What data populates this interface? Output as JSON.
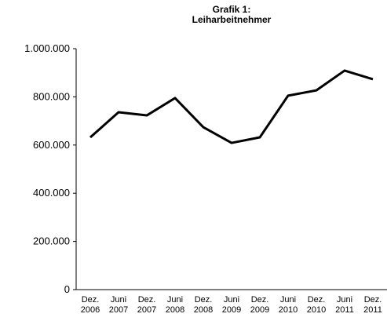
{
  "chart_data": {
    "type": "line",
    "title": "Grafik 1:\nLeiharbeitnehmer",
    "categories": [
      "Dez.\n2006",
      "Juni\n2007",
      "Dez.\n2007",
      "Juni\n2008",
      "Dez.\n2008",
      "Juni\n2009",
      "Dez.\n2009",
      "Juni\n2010",
      "Dez.\n2010",
      "Juni\n2011",
      "Dez.\n2011"
    ],
    "series": [
      {
        "name": "Leiharbeitnehmer",
        "color": "#000000",
        "values": [
          632000,
          736000,
          723000,
          795000,
          674000,
          609000,
          632000,
          805000,
          827000,
          909000,
          873000
        ]
      }
    ],
    "ylim": [
      0,
      1000000
    ],
    "yticks": [
      0,
      {
        "value": 200000,
        "label": "200.000"
      },
      {
        "value": 400000,
        "label": "400.000"
      },
      {
        "value": 600000,
        "label": "600.000"
      },
      {
        "value": 800000,
        "label": "800.000"
      },
      {
        "value": 1000000,
        "label": "1.000.000"
      }
    ],
    "grid": false
  }
}
